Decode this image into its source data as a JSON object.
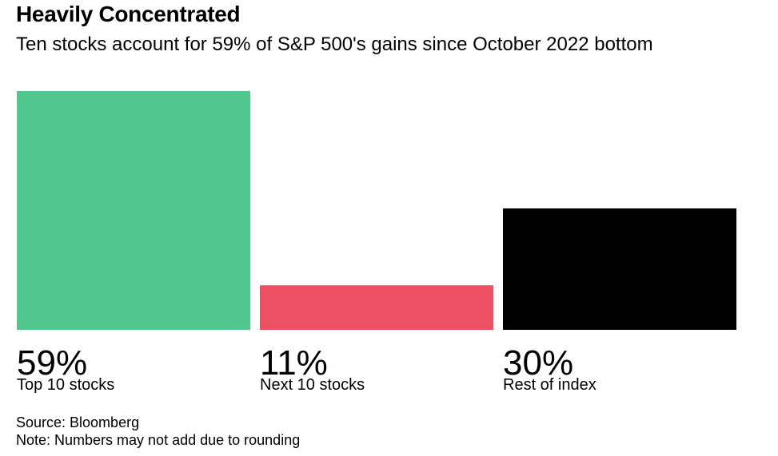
{
  "title": "Heavily Concentrated",
  "subtitle": "Ten stocks account for 59% of S&P 500's gains since October 2022 bottom",
  "chart_data": {
    "type": "bar",
    "categories": [
      "Top 10 stocks",
      "Next 10 stocks",
      "Rest of index"
    ],
    "values": [
      59,
      11,
      30
    ],
    "value_labels": [
      "59%",
      "11%",
      "30%"
    ],
    "colors": [
      "#52c68f",
      "#ee5063",
      "#000000"
    ],
    "ylim": [
      0,
      59
    ],
    "grid": false,
    "legend": "none"
  },
  "footer": {
    "source": "Source: Bloomberg",
    "note": "Note: Numbers may not add due to rounding"
  }
}
